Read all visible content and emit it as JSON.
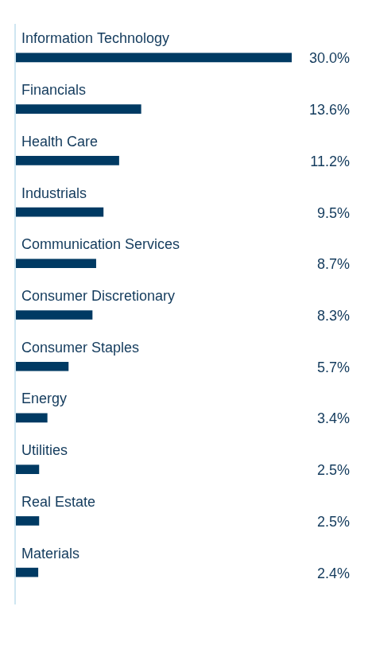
{
  "chart_data": {
    "type": "bar",
    "orientation": "horizontal",
    "categories": [
      "Information Technology",
      "Financials",
      "Health Care",
      "Industrials",
      "Communication Services",
      "Consumer Discretionary",
      "Consumer Staples",
      "Energy",
      "Utilities",
      "Real Estate",
      "Materials"
    ],
    "values": [
      30.0,
      13.6,
      11.2,
      9.5,
      8.7,
      8.3,
      5.7,
      3.4,
      2.5,
      2.5,
      2.4
    ],
    "value_labels": [
      "30.0%",
      "13.6%",
      "11.2%",
      "9.5%",
      "8.7%",
      "8.3%",
      "5.7%",
      "3.4%",
      "2.5%",
      "2.5%",
      "2.4%"
    ],
    "color": "#003a63",
    "data_labels": true,
    "tick_labels": false,
    "grid": false
  }
}
